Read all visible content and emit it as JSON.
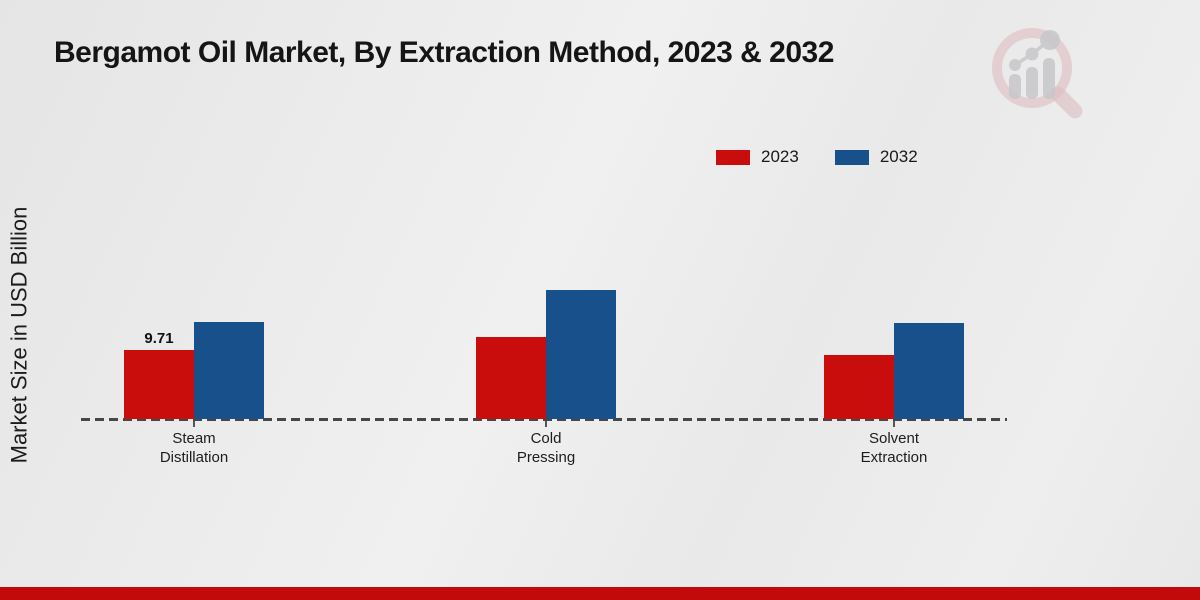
{
  "page": {
    "title": "Bergamot Oil Market, By Extraction Method, 2023 & 2032"
  },
  "colors": {
    "series_2023": "#c90d0d",
    "series_2032": "#17508a",
    "footer_bar": "#c20a0a",
    "baseline": "#474747",
    "background": "#ebebeb"
  },
  "legend": {
    "items": [
      {
        "label": "2023",
        "color": "#c90d0d"
      },
      {
        "label": "2032",
        "color": "#17508a"
      }
    ]
  },
  "chart_data": {
    "type": "bar",
    "title": "Bergamot Oil Market, By Extraction Method, 2023 & 2032",
    "categories": [
      "Steam\nDistillation",
      "Cold\nPressing",
      "Solvent\nExtraction"
    ],
    "series": [
      {
        "name": "2023",
        "color": "#c90d0d",
        "values": [
          9.71,
          11.5,
          9.0
        ],
        "data_labels": [
          "9.71",
          "",
          ""
        ]
      },
      {
        "name": "2032",
        "color": "#17508a",
        "values": [
          13.6,
          18.2,
          13.5
        ],
        "data_labels": [
          "",
          "",
          ""
        ]
      }
    ],
    "xlabel": "",
    "ylabel": "Market Size in USD Billion",
    "ylim": [
      0,
      26
    ],
    "grid": false,
    "legend_position": "top-right",
    "baseline_style": "dashed",
    "note": "only first 2023 bar carries a printed data label"
  },
  "logo": {
    "name": "market-research-magnifier-chart-logo"
  }
}
